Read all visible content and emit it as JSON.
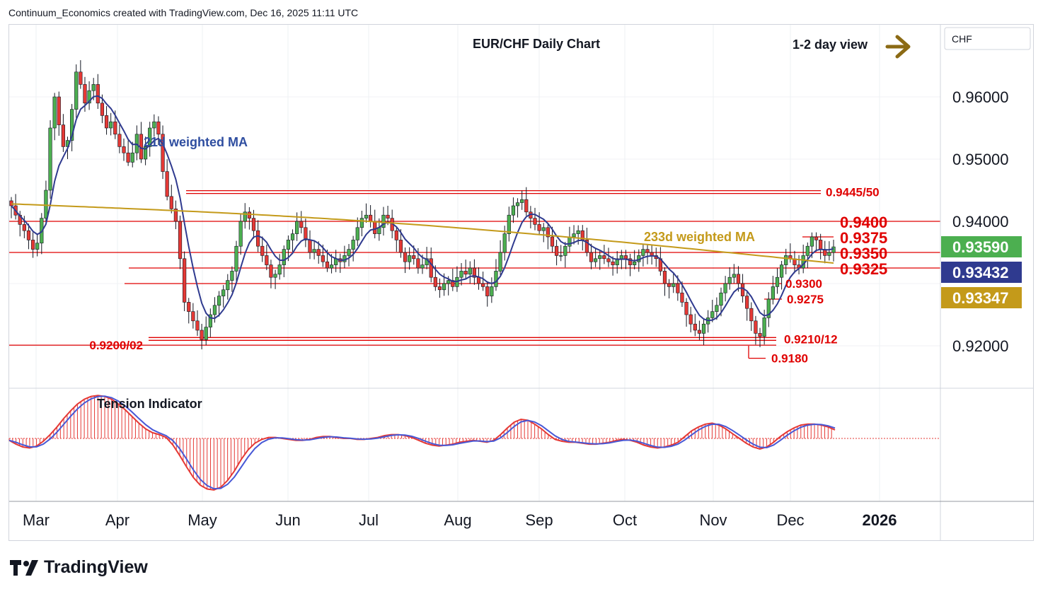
{
  "header": {
    "text": "Continuum_Economics created with TradingView.com, Dec 16, 2025 11:11 UTC"
  },
  "brand": {
    "name": "TradingView"
  },
  "chart_data": {
    "type": "candlestick",
    "title": "EUR/CHF Daily Chart",
    "view": "1-2 day view",
    "currency": "CHF",
    "ylim": [
      0.9165,
      0.968
    ],
    "y_ticks": [
      "0.96000",
      "0.95000",
      "0.94000",
      "0.92000"
    ],
    "x_labels": [
      "Mar",
      "Apr",
      "May",
      "Jun",
      "Jul",
      "Aug",
      "Sep",
      "Oct",
      "Nov",
      "Dec",
      "2026"
    ],
    "price_badges": [
      {
        "value": "0.93590",
        "color": "#4caf50"
      },
      {
        "value": "0.93432",
        "color": "#2f3a8f"
      },
      {
        "value": "0.93347",
        "color": "#c49a1a"
      }
    ],
    "levels": [
      {
        "label": "0.9445/50",
        "value": 0.9447,
        "style": "double",
        "size": "small"
      },
      {
        "label": "0.9400",
        "value": 0.94,
        "style": "single",
        "size": "large"
      },
      {
        "label": "0.9375",
        "value": 0.9375,
        "style": "short",
        "size": "large"
      },
      {
        "label": "0.9350",
        "value": 0.935,
        "style": "single",
        "size": "large"
      },
      {
        "label": "0.9325",
        "value": 0.9325,
        "style": "single",
        "size": "large"
      },
      {
        "label": "0.9300",
        "value": 0.93,
        "style": "single",
        "size": "small"
      },
      {
        "label": "0.9275",
        "value": 0.9275,
        "style": "short",
        "size": "small"
      },
      {
        "label": "0.9210/12",
        "value": 0.9211,
        "style": "double",
        "size": "small"
      },
      {
        "label": "0.9200/02",
        "value": 0.9201,
        "style": "single",
        "size": "small"
      },
      {
        "label": "0.9180",
        "value": 0.918,
        "style": "short",
        "size": "small"
      }
    ],
    "ma_labels": {
      "wma21": "21d weighted MA",
      "wma233": "233d weighted MA"
    },
    "indicator": {
      "name": "Tension Indicator"
    },
    "colors": {
      "up": "#4caf50",
      "down": "#e53935",
      "ma21": "#2f3a8f",
      "ma233": "#c49a1a",
      "level": "#e00000",
      "tension": "#e53935",
      "tension_signal": "#4758d6",
      "arrow": "#8b6a14"
    },
    "closes": [
      0.9425,
      0.941,
      0.9395,
      0.9385,
      0.937,
      0.9355,
      0.9365,
      0.9405,
      0.945,
      0.955,
      0.96,
      0.9555,
      0.952,
      0.953,
      0.958,
      0.964,
      0.962,
      0.959,
      0.961,
      0.962,
      0.959,
      0.957,
      0.955,
      0.956,
      0.954,
      0.952,
      0.951,
      0.9495,
      0.951,
      0.954,
      0.95,
      0.952,
      0.955,
      0.956,
      0.954,
      0.948,
      0.944,
      0.942,
      0.94,
      0.934,
      0.927,
      0.9255,
      0.924,
      0.9225,
      0.921,
      0.923,
      0.925,
      0.9265,
      0.928,
      0.929,
      0.9305,
      0.932,
      0.936,
      0.94,
      0.9415,
      0.9405,
      0.9385,
      0.936,
      0.9345,
      0.933,
      0.931,
      0.9315,
      0.933,
      0.9355,
      0.937,
      0.938,
      0.94,
      0.939,
      0.937,
      0.935,
      0.9355,
      0.9345,
      0.9335,
      0.9325,
      0.933,
      0.934,
      0.9335,
      0.9345,
      0.9355,
      0.937,
      0.939,
      0.9405,
      0.941,
      0.94,
      0.938,
      0.939,
      0.941,
      0.9405,
      0.9385,
      0.937,
      0.935,
      0.9335,
      0.9345,
      0.934,
      0.9325,
      0.933,
      0.934,
      0.931,
      0.9295,
      0.929,
      0.93,
      0.9305,
      0.9295,
      0.931,
      0.932,
      0.9315,
      0.9325,
      0.931,
      0.93,
      0.9295,
      0.928,
      0.9295,
      0.932,
      0.935,
      0.938,
      0.941,
      0.9425,
      0.943,
      0.9435,
      0.9415,
      0.9405,
      0.9395,
      0.9385,
      0.939,
      0.9375,
      0.936,
      0.9345,
      0.9345,
      0.936,
      0.9375,
      0.938,
      0.9385,
      0.937,
      0.935,
      0.9335,
      0.934,
      0.9345,
      0.934,
      0.9335,
      0.933,
      0.934,
      0.9345,
      0.934,
      0.933,
      0.9335,
      0.9345,
      0.9355,
      0.935,
      0.9345,
      0.934,
      0.932,
      0.93,
      0.9295,
      0.93,
      0.9285,
      0.927,
      0.925,
      0.9235,
      0.9225,
      0.922,
      0.9235,
      0.9245,
      0.9255,
      0.9265,
      0.9285,
      0.93,
      0.931,
      0.9315,
      0.93,
      0.928,
      0.926,
      0.924,
      0.922,
      0.9215,
      0.9245,
      0.9275,
      0.9295,
      0.931,
      0.933,
      0.9345,
      0.934,
      0.933,
      0.9325,
      0.9345,
      0.936,
      0.9375,
      0.937,
      0.9355,
      0.9345,
      0.935,
      0.9359
    ],
    "tension": [
      -0.1,
      -0.3,
      -0.45,
      -0.5,
      -0.4,
      -0.15,
      0.2,
      0.6,
      1.05,
      1.45,
      1.8,
      2.05,
      2.2,
      2.25,
      2.2,
      2.05,
      1.8,
      1.5,
      1.15,
      0.8,
      0.5,
      0.3,
      0.2,
      0.05,
      -0.35,
      -0.9,
      -1.5,
      -2.05,
      -2.45,
      -2.65,
      -2.7,
      -2.55,
      -2.2,
      -1.7,
      -1.1,
      -0.6,
      -0.25,
      -0.05,
      0.05,
      0.05,
      0.0,
      -0.05,
      -0.1,
      -0.1,
      -0.05,
      0.05,
      0.1,
      0.1,
      0.05,
      0.0,
      0.0,
      -0.05,
      -0.05,
      0.0,
      0.05,
      0.15,
      0.2,
      0.2,
      0.15,
      0.05,
      -0.1,
      -0.25,
      -0.35,
      -0.4,
      -0.35,
      -0.3,
      -0.2,
      -0.15,
      -0.1,
      -0.15,
      -0.2,
      -0.1,
      0.2,
      0.55,
      0.85,
      1.0,
      0.95,
      0.75,
      0.5,
      0.2,
      -0.05,
      -0.15,
      -0.2,
      -0.2,
      -0.25,
      -0.3,
      -0.3,
      -0.25,
      -0.2,
      -0.1,
      -0.05,
      -0.1,
      -0.2,
      -0.35,
      -0.45,
      -0.5,
      -0.45,
      -0.35,
      -0.2,
      0.1,
      0.4,
      0.6,
      0.75,
      0.8,
      0.7,
      0.5,
      0.25,
      0.0,
      -0.25,
      -0.45,
      -0.55,
      -0.45,
      -0.2,
      0.1,
      0.35,
      0.55,
      0.7,
      0.75,
      0.75,
      0.7,
      0.6,
      0.45
    ]
  }
}
